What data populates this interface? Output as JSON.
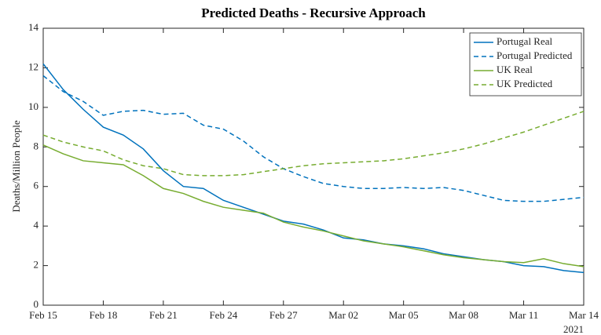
{
  "chart_data": {
    "type": "line",
    "title": "Predicted Deaths - Recursive Approach",
    "ylabel": "Deaths/Million People",
    "year": "2021",
    "categories": [
      "Feb 15",
      null,
      null,
      "Feb 18",
      null,
      null,
      "Feb 21",
      null,
      null,
      "Feb 24",
      null,
      null,
      "Feb 27",
      null,
      null,
      "Mar 02",
      null,
      null,
      "Mar 05",
      null,
      null,
      "Mar 08",
      null,
      null,
      "Mar 11",
      null,
      null,
      "Mar 14"
    ],
    "series": [
      {
        "name": "Portugal Real",
        "color": "#0072bd",
        "linestyle": "solid",
        "values": [
          12.2,
          10.9,
          9.9,
          9.0,
          8.6,
          7.9,
          6.8,
          6.0,
          5.9,
          5.3,
          4.95,
          4.6,
          4.25,
          4.1,
          3.8,
          3.4,
          3.3,
          3.1,
          3.0,
          2.85,
          2.6,
          2.45,
          2.3,
          2.2,
          2.0,
          1.95,
          1.75,
          1.65
        ]
      },
      {
        "name": "Portugal Predicted",
        "color": "#0072bd",
        "linestyle": "dashed",
        "values": [
          11.6,
          10.8,
          10.3,
          9.6,
          9.8,
          9.85,
          9.65,
          9.7,
          9.1,
          8.9,
          8.3,
          7.5,
          6.9,
          6.5,
          6.15,
          6.0,
          5.9,
          5.9,
          5.95,
          5.9,
          5.95,
          5.8,
          5.55,
          5.3,
          5.25,
          5.25,
          5.35,
          5.45
        ]
      },
      {
        "name": "UK Real",
        "color": "#77ac30",
        "linestyle": "solid",
        "values": [
          8.1,
          7.65,
          7.3,
          7.2,
          7.1,
          6.55,
          5.9,
          5.65,
          5.25,
          4.95,
          4.8,
          4.65,
          4.2,
          3.95,
          3.75,
          3.5,
          3.25,
          3.1,
          2.95,
          2.75,
          2.55,
          2.4,
          2.3,
          2.2,
          2.15,
          2.35,
          2.1,
          1.95
        ]
      },
      {
        "name": "UK Predicted",
        "color": "#77ac30",
        "linestyle": "dashed",
        "values": [
          8.6,
          8.25,
          8.0,
          7.8,
          7.35,
          7.05,
          6.9,
          6.6,
          6.55,
          6.55,
          6.6,
          6.75,
          6.9,
          7.05,
          7.15,
          7.2,
          7.25,
          7.3,
          7.4,
          7.55,
          7.7,
          7.9,
          8.15,
          8.45,
          8.75,
          9.1,
          9.45,
          9.8
        ]
      }
    ],
    "ylim": [
      0,
      14
    ],
    "yticks": [
      0,
      2,
      4,
      6,
      8,
      10,
      12,
      14
    ],
    "grid": false,
    "legend": "upper right"
  }
}
